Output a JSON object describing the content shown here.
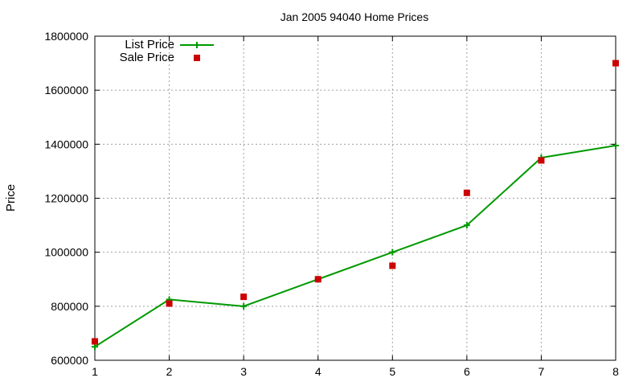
{
  "chart_data": {
    "type": "line",
    "title": "Jan 2005 94040 Home Prices",
    "xlabel": "",
    "ylabel": "Price",
    "xlim": [
      1,
      8
    ],
    "ylim": [
      600000,
      1800000
    ],
    "x_ticks": [
      1,
      2,
      3,
      4,
      5,
      6,
      7,
      8
    ],
    "y_ticks": [
      600000,
      800000,
      1000000,
      1200000,
      1400000,
      1600000,
      1800000
    ],
    "grid": true,
    "legend_position": "top-left",
    "series": [
      {
        "name": "List Price",
        "style": "line-with-plus-markers",
        "color": "#009900",
        "x": [
          1,
          2,
          3,
          4,
          5,
          6,
          7,
          8
        ],
        "values": [
          650000,
          825000,
          800000,
          900000,
          1000000,
          1100000,
          1350000,
          1395000
        ]
      },
      {
        "name": "Sale Price",
        "style": "square-markers",
        "color": "#cc0000",
        "x": [
          1,
          2,
          3,
          4,
          5,
          6,
          7,
          8
        ],
        "values": [
          670000,
          810000,
          835000,
          900000,
          950000,
          1220000,
          1340000,
          1700000
        ]
      }
    ]
  }
}
